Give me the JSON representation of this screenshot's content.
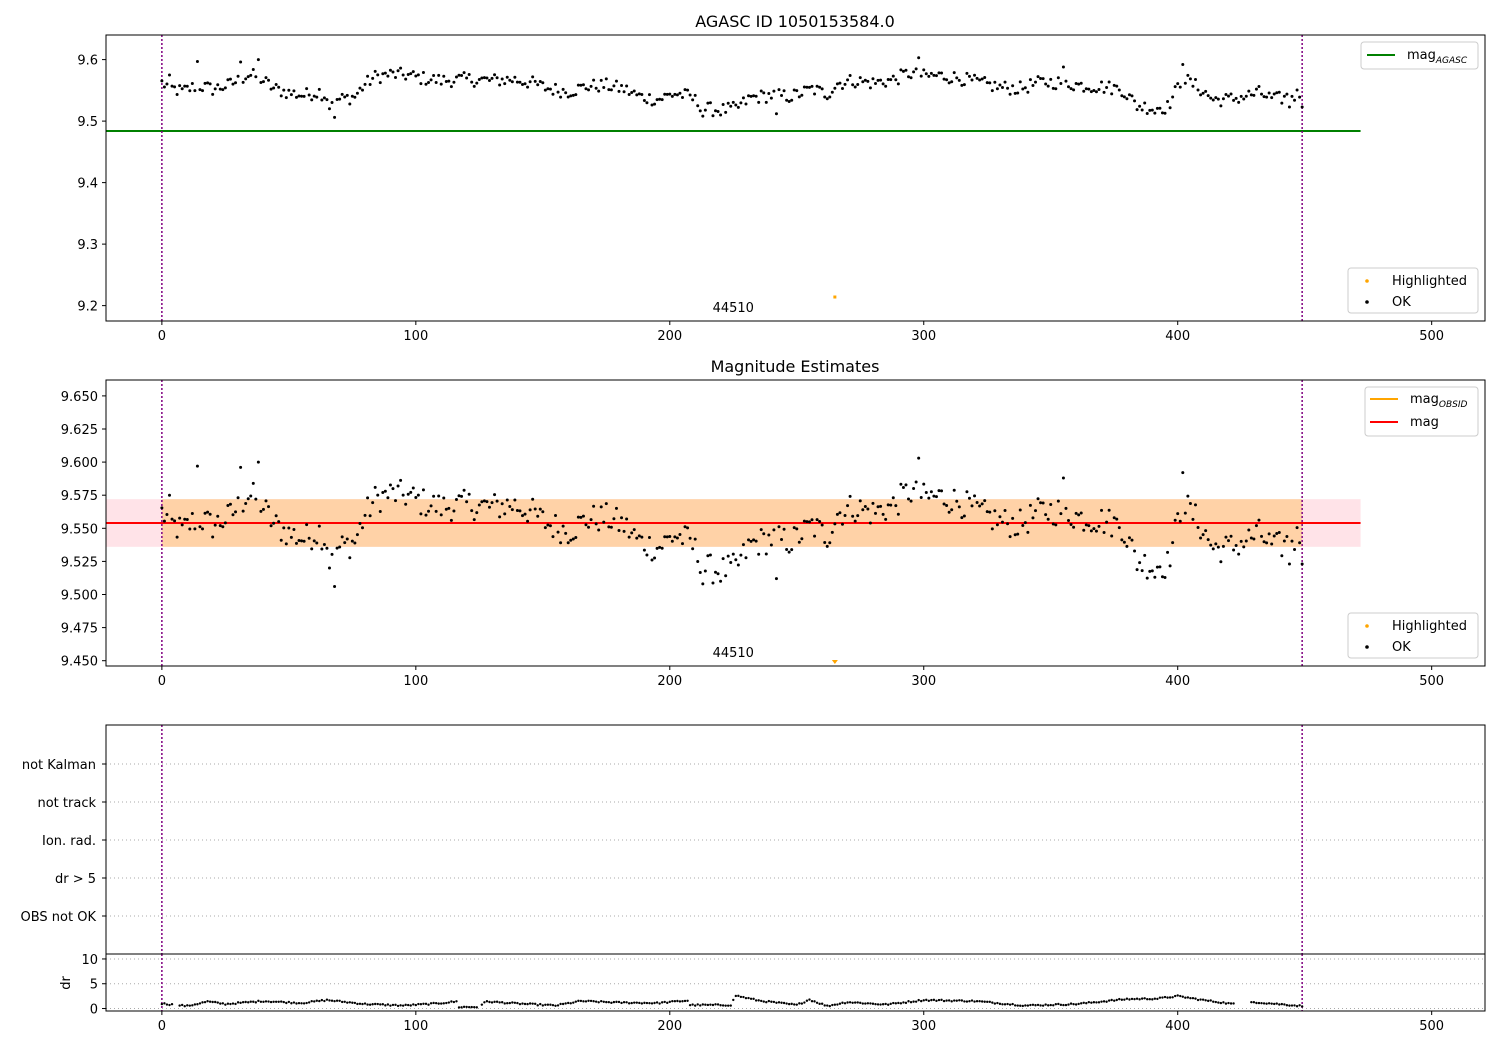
{
  "chart_data": [
    {
      "type": "scatter",
      "title": "AGASC ID 1050153584.0",
      "xlim": [
        -22,
        521
      ],
      "ylim": [
        9.175,
        9.64
      ],
      "xticks": [
        0,
        100,
        200,
        300,
        400,
        500
      ],
      "yticks": [
        9.2,
        9.3,
        9.4,
        9.5,
        9.6
      ],
      "ytick_labels": [
        "9.2",
        "9.3",
        "9.4",
        "9.5",
        "9.6"
      ],
      "vlines": [
        0,
        449
      ],
      "hlines": [
        {
          "name": "mag",
          "subscript": "AGASC",
          "value": 9.484,
          "xmax": 472,
          "color": "#008000"
        }
      ],
      "highlighted": {
        "x": 265,
        "y": 9.214
      },
      "obsid_label": {
        "text": "44510",
        "x": 225
      },
      "series_baseline": 0,
      "legend_top": [
        {
          "label": "mag",
          "subscript": "AGASC",
          "color": "#008000",
          "style": "line"
        }
      ],
      "legend_bottom": [
        {
          "label": "Highlighted",
          "color": "#ffa500",
          "style": "dot"
        },
        {
          "label": "OK",
          "color": "#000000",
          "style": "dot"
        }
      ]
    },
    {
      "type": "scatter",
      "title": "Magnitude Estimates",
      "xlim": [
        -22,
        521
      ],
      "ylim": [
        9.446,
        9.662
      ],
      "xticks": [
        0,
        100,
        200,
        300,
        400,
        500
      ],
      "yticks": [
        9.45,
        9.475,
        9.5,
        9.525,
        9.55,
        9.575,
        9.6,
        9.625,
        9.65
      ],
      "ytick_labels": [
        "9.450",
        "9.475",
        "9.500",
        "9.525",
        "9.550",
        "9.575",
        "9.600",
        "9.625",
        "9.650"
      ],
      "vlines": [
        0,
        449
      ],
      "mean": 9.554,
      "band_pink": [
        9.536,
        9.572
      ],
      "band_orange": [
        9.536,
        9.572
      ],
      "band_pink_xmax": 472,
      "band_orange_xmax": 449,
      "highlighted": {
        "x": 265,
        "y": 9.449
      },
      "obsid_label": {
        "text": "44510",
        "x": 225
      },
      "legend_top": [
        {
          "label": "mag",
          "subscript": "OBSID",
          "color": "#ffa500",
          "style": "line"
        },
        {
          "label": "mag",
          "subscript": "",
          "color": "#ff0000",
          "style": "line"
        }
      ],
      "legend_bottom": [
        {
          "label": "Highlighted",
          "color": "#ffa500",
          "style": "dot"
        },
        {
          "label": "OK",
          "color": "#000000",
          "style": "dot"
        }
      ]
    },
    {
      "type": "flags",
      "xlim": [
        -22,
        521
      ],
      "categories": [
        "OBS not OK",
        "dr > 5",
        "Ion. rad.",
        "not track",
        "not Kalman"
      ],
      "vlines": [
        0,
        449
      ]
    },
    {
      "type": "scatter",
      "xlim": [
        -22,
        521
      ],
      "ylim": [
        -0.5,
        11
      ],
      "ylabel": "dr",
      "yticks": [
        0,
        5,
        10
      ],
      "ytick_labels": [
        "0",
        "5",
        "10"
      ],
      "xticks": [
        0,
        100,
        200,
        300,
        400,
        500
      ],
      "xtick_labels": [
        "0",
        "100",
        "200",
        "300",
        "400",
        "500"
      ],
      "vlines": [
        0,
        449
      ]
    }
  ],
  "mag_series": {
    "x_start": 0,
    "x_step": 1,
    "anchors_x": [
      0,
      4,
      8,
      14,
      20,
      26,
      30,
      34,
      38,
      44,
      50,
      56,
      62,
      66,
      70,
      76,
      80,
      84,
      90,
      96,
      102,
      110,
      120,
      130,
      138,
      145,
      152,
      160,
      168,
      175,
      182,
      188,
      195,
      202,
      208,
      214,
      220,
      226,
      232,
      240,
      248,
      256,
      262,
      266,
      272,
      280,
      288,
      294,
      300,
      306,
      314,
      322,
      330,
      338,
      346,
      354,
      362,
      370,
      378,
      384,
      390,
      396,
      402,
      408,
      414,
      420,
      426,
      432,
      438,
      444,
      449
    ],
    "anchors_y": [
      9.562,
      9.553,
      9.548,
      9.558,
      9.552,
      9.558,
      9.566,
      9.575,
      9.572,
      9.553,
      9.546,
      9.542,
      9.548,
      9.537,
      9.535,
      9.54,
      9.56,
      9.572,
      9.576,
      9.575,
      9.57,
      9.566,
      9.568,
      9.566,
      9.568,
      9.563,
      9.553,
      9.548,
      9.557,
      9.558,
      9.552,
      9.54,
      9.535,
      9.545,
      9.54,
      9.52,
      9.518,
      9.52,
      9.538,
      9.542,
      9.54,
      9.552,
      9.544,
      9.561,
      9.566,
      9.562,
      9.567,
      9.578,
      9.573,
      9.574,
      9.57,
      9.562,
      9.555,
      9.553,
      9.563,
      9.563,
      9.558,
      9.556,
      9.552,
      9.525,
      9.522,
      9.523,
      9.57,
      9.555,
      9.535,
      9.535,
      9.54,
      9.546,
      9.535,
      9.54,
      9.545
    ],
    "outliers": [
      [
        3,
        9.575
      ],
      [
        14,
        9.597
      ],
      [
        31,
        9.596
      ],
      [
        38,
        9.6
      ],
      [
        68,
        9.506
      ],
      [
        66,
        9.52
      ],
      [
        298,
        9.603
      ],
      [
        355,
        9.588
      ],
      [
        402,
        9.592
      ],
      [
        213,
        9.508
      ],
      [
        220,
        9.51
      ],
      [
        242,
        9.512
      ],
      [
        391,
        9.513
      ],
      [
        444,
        9.523
      ],
      [
        449,
        9.523
      ]
    ]
  },
  "dr_series": {
    "segments": [
      [
        0,
        4
      ],
      [
        7,
        116
      ],
      [
        117,
        124
      ],
      [
        126,
        207
      ],
      [
        208,
        224
      ],
      [
        225,
        231
      ],
      [
        232,
        251
      ],
      [
        252,
        257
      ],
      [
        258,
        422
      ],
      [
        429,
        449
      ]
    ],
    "curve_x": [
      0,
      10,
      18,
      25,
      40,
      55,
      65,
      80,
      95,
      108,
      116,
      117,
      124,
      128,
      140,
      155,
      165,
      180,
      195,
      207,
      208,
      224,
      226,
      235,
      250,
      255,
      262,
      270,
      285,
      300,
      320,
      340,
      360,
      380,
      392,
      400,
      410,
      422,
      430,
      449
    ],
    "curve_y": [
      1.0,
      0.5,
      1.4,
      0.9,
      1.5,
      1.1,
      1.7,
      0.9,
      0.6,
      1.0,
      1.4,
      0.3,
      0.3,
      1.4,
      1.0,
      0.6,
      1.5,
      1.2,
      1.1,
      1.6,
      0.7,
      0.7,
      2.6,
      1.6,
      0.7,
      1.8,
      0.5,
      1.3,
      0.8,
      1.7,
      1.5,
      0.6,
      0.9,
      1.9,
      2.0,
      2.5,
      1.7,
      0.9,
      1.3,
      0.5
    ]
  }
}
